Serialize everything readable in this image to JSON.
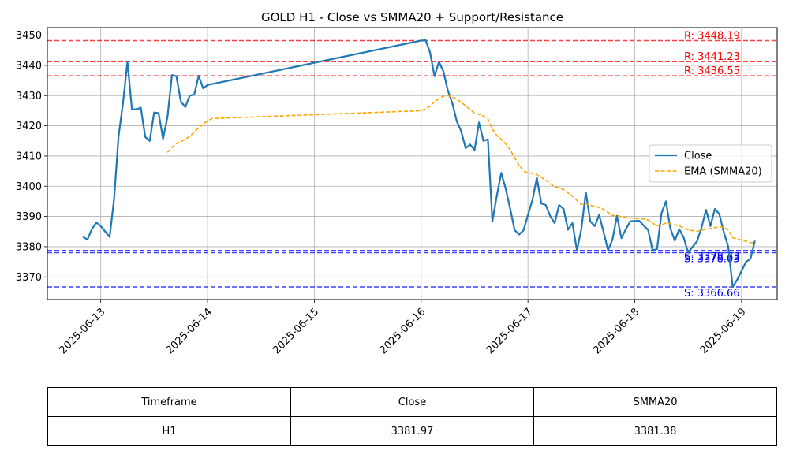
{
  "chart_data": {
    "type": "line",
    "title": "GOLD H1 - Close vs SMMA20 + Support/Resistance",
    "xlabel": "",
    "ylabel": "",
    "xlim": [
      "2025-06-12 12:00",
      "2025-06-19 08:00"
    ],
    "ylim": [
      3362.5,
      3452.5
    ],
    "yticks": [
      3370,
      3380,
      3390,
      3400,
      3410,
      3420,
      3430,
      3440,
      3450
    ],
    "xticks": [
      "2025-06-13",
      "2025-06-14",
      "2025-06-15",
      "2025-06-16",
      "2025-06-17",
      "2025-06-18",
      "2025-06-19"
    ],
    "grid": true,
    "legend": "center-right",
    "series": [
      {
        "name": "Close",
        "color": "#1f77b4",
        "style": "solid",
        "points": [
          [
            "2025-06-12 20:00",
            3383.3
          ],
          [
            "2025-06-12 21:00",
            3382.3
          ],
          [
            "2025-06-12 22:00",
            3385.8
          ],
          [
            "2025-06-12 23:00",
            3388.0
          ],
          [
            "2025-06-13 00:00",
            3386.8
          ],
          [
            "2025-06-13 01:00",
            3385.0
          ],
          [
            "2025-06-13 02:00",
            3383.2
          ],
          [
            "2025-06-13 03:00",
            3395.8
          ],
          [
            "2025-06-13 04:00",
            3416.5
          ],
          [
            "2025-06-13 05:00",
            3427.5
          ],
          [
            "2025-06-13 06:00",
            3441.2
          ],
          [
            "2025-06-13 07:00",
            3425.5
          ],
          [
            "2025-06-13 08:00",
            3425.4
          ],
          [
            "2025-06-13 09:00",
            3426.0
          ],
          [
            "2025-06-13 10:00",
            3416.3
          ],
          [
            "2025-06-13 11:00",
            3415.0
          ],
          [
            "2025-06-13 12:00",
            3424.4
          ],
          [
            "2025-06-13 13:00",
            3424.2
          ],
          [
            "2025-06-13 14:00",
            3415.7
          ],
          [
            "2025-06-13 15:00",
            3423.0
          ],
          [
            "2025-06-13 16:00",
            3436.8
          ],
          [
            "2025-06-13 17:00",
            3436.4
          ],
          [
            "2025-06-13 18:00",
            3428.0
          ],
          [
            "2025-06-13 19:00",
            3426.2
          ],
          [
            "2025-06-13 20:00",
            3430.0
          ],
          [
            "2025-06-13 21:00",
            3430.3
          ],
          [
            "2025-06-13 22:00",
            3436.6
          ],
          [
            "2025-06-13 23:00",
            3432.4
          ],
          [
            "2025-06-14 00:00",
            3433.5
          ],
          [
            "2025-06-16 00:00",
            3448.2
          ],
          [
            "2025-06-16 01:00",
            3448.3
          ],
          [
            "2025-06-16 02:00",
            3444.3
          ],
          [
            "2025-06-16 03:00",
            3436.4
          ],
          [
            "2025-06-16 04:00",
            3441.2
          ],
          [
            "2025-06-16 05:00",
            3438.0
          ],
          [
            "2025-06-16 06:00",
            3431.7
          ],
          [
            "2025-06-16 07:00",
            3427.5
          ],
          [
            "2025-06-16 08:00",
            3421.5
          ],
          [
            "2025-06-16 09:00",
            3418.2
          ],
          [
            "2025-06-16 10:00",
            3412.6
          ],
          [
            "2025-06-16 11:00",
            3413.8
          ],
          [
            "2025-06-16 12:00",
            3412.0
          ],
          [
            "2025-06-16 13:00",
            3421.1
          ],
          [
            "2025-06-16 14:00",
            3415.0
          ],
          [
            "2025-06-16 15:00",
            3415.5
          ],
          [
            "2025-06-16 16:00",
            3388.3
          ],
          [
            "2025-06-16 17:00",
            3396.8
          ],
          [
            "2025-06-16 18:00",
            3404.4
          ],
          [
            "2025-06-16 19:00",
            3399.2
          ],
          [
            "2025-06-16 20:00",
            3392.6
          ],
          [
            "2025-06-16 21:00",
            3385.5
          ],
          [
            "2025-06-16 22:00",
            3384.0
          ],
          [
            "2025-06-16 23:00",
            3385.4
          ],
          [
            "2025-06-17 00:00",
            3390.5
          ],
          [
            "2025-06-17 01:00",
            3395.4
          ],
          [
            "2025-06-17 02:00",
            3402.8
          ],
          [
            "2025-06-17 03:00",
            3394.3
          ],
          [
            "2025-06-17 04:00",
            3393.8
          ],
          [
            "2025-06-17 05:00",
            3390.1
          ],
          [
            "2025-06-17 06:00",
            3387.8
          ],
          [
            "2025-06-17 07:00",
            3393.8
          ],
          [
            "2025-06-17 08:00",
            3392.5
          ],
          [
            "2025-06-17 09:00",
            3385.6
          ],
          [
            "2025-06-17 10:00",
            3387.8
          ],
          [
            "2025-06-17 11:00",
            3378.8
          ],
          [
            "2025-06-17 12:00",
            3385.8
          ],
          [
            "2025-06-17 13:00",
            3398.0
          ],
          [
            "2025-06-17 14:00",
            3388.4
          ],
          [
            "2025-06-17 15:00",
            3386.8
          ],
          [
            "2025-06-17 16:00",
            3390.5
          ],
          [
            "2025-06-17 17:00",
            3384.8
          ],
          [
            "2025-06-17 18:00",
            3378.8
          ],
          [
            "2025-06-17 19:00",
            3382.4
          ],
          [
            "2025-06-17 20:00",
            3390.2
          ],
          [
            "2025-06-17 21:00",
            3382.8
          ],
          [
            "2025-06-17 22:00",
            3385.8
          ],
          [
            "2025-06-17 23:00",
            3388.4
          ],
          [
            "2025-06-18 00:00",
            3388.5
          ],
          [
            "2025-06-18 01:00",
            3388.6
          ],
          [
            "2025-06-18 02:00",
            3387.0
          ],
          [
            "2025-06-18 03:00",
            3385.5
          ],
          [
            "2025-06-18 04:00",
            3378.8
          ],
          [
            "2025-06-18 05:00",
            3379.2
          ],
          [
            "2025-06-18 06:00",
            3391.0
          ],
          [
            "2025-06-18 07:00",
            3395.0
          ],
          [
            "2025-06-18 08:00",
            3386.0
          ],
          [
            "2025-06-18 09:00",
            3382.0
          ],
          [
            "2025-06-18 10:00",
            3385.8
          ],
          [
            "2025-06-18 11:00",
            3383.0
          ],
          [
            "2025-06-18 12:00",
            3378.0
          ],
          [
            "2025-06-18 13:00",
            3380.0
          ],
          [
            "2025-06-18 14:00",
            3381.8
          ],
          [
            "2025-06-18 15:00",
            3386.3
          ],
          [
            "2025-06-18 16:00",
            3392.2
          ],
          [
            "2025-06-18 17:00",
            3386.8
          ],
          [
            "2025-06-18 18:00",
            3392.5
          ],
          [
            "2025-06-18 19:00",
            3390.8
          ],
          [
            "2025-06-18 20:00",
            3384.8
          ],
          [
            "2025-06-18 21:00",
            3380.0
          ],
          [
            "2025-06-18 22:00",
            3366.7
          ],
          [
            "2025-06-18 23:00",
            3369.0
          ],
          [
            "2025-06-19 00:00",
            3372.0
          ],
          [
            "2025-06-19 01:00",
            3375.0
          ],
          [
            "2025-06-19 02:00",
            3376.0
          ],
          [
            "2025-06-19 03:00",
            3381.97
          ]
        ]
      },
      {
        "name": "EMA (SMMA20)",
        "color": "#ffa500",
        "style": "dashed",
        "points": [
          [
            "2025-06-13 15:00",
            3411.2
          ],
          [
            "2025-06-13 16:00",
            3412.9
          ],
          [
            "2025-06-13 17:00",
            3414.1
          ],
          [
            "2025-06-13 18:00",
            3414.8
          ],
          [
            "2025-06-13 19:00",
            3415.5
          ],
          [
            "2025-06-13 20:00",
            3416.6
          ],
          [
            "2025-06-13 21:00",
            3417.8
          ],
          [
            "2025-06-13 22:00",
            3419.4
          ],
          [
            "2025-06-13 23:00",
            3420.5
          ],
          [
            "2025-06-14 00:00",
            3421.6
          ],
          [
            "2025-06-14 01:00",
            3422.4
          ],
          [
            "2025-06-16 00:00",
            3425.0
          ],
          [
            "2025-06-16 01:00",
            3425.6
          ],
          [
            "2025-06-16 02:00",
            3426.5
          ],
          [
            "2025-06-16 03:00",
            3428.0
          ],
          [
            "2025-06-16 04:00",
            3429.0
          ],
          [
            "2025-06-16 05:00",
            3429.8
          ],
          [
            "2025-06-16 06:00",
            3430.0
          ],
          [
            "2025-06-16 07:00",
            3429.5
          ],
          [
            "2025-06-16 08:00",
            3428.8
          ],
          [
            "2025-06-16 09:00",
            3427.8
          ],
          [
            "2025-06-16 10:00",
            3426.6
          ],
          [
            "2025-06-16 11:00",
            3425.4
          ],
          [
            "2025-06-16 12:00",
            3424.2
          ],
          [
            "2025-06-16 13:00",
            3423.8
          ],
          [
            "2025-06-16 14:00",
            3423.2
          ],
          [
            "2025-06-16 15:00",
            3422.3
          ],
          [
            "2025-06-16 16:00",
            3418.9
          ],
          [
            "2025-06-16 17:00",
            3416.8
          ],
          [
            "2025-06-16 18:00",
            3415.6
          ],
          [
            "2025-06-16 19:00",
            3414.0
          ],
          [
            "2025-06-16 20:00",
            3412.0
          ],
          [
            "2025-06-16 21:00",
            3409.5
          ],
          [
            "2025-06-16 22:00",
            3407.0
          ],
          [
            "2025-06-16 23:00",
            3405.0
          ],
          [
            "2025-06-17 00:00",
            3404.5
          ],
          [
            "2025-06-17 01:00",
            3404.2
          ],
          [
            "2025-06-17 02:00",
            3403.8
          ],
          [
            "2025-06-17 03:00",
            3403.0
          ],
          [
            "2025-06-17 04:00",
            3402.0
          ],
          [
            "2025-06-17 05:00",
            3400.9
          ],
          [
            "2025-06-17 06:00",
            3399.8
          ],
          [
            "2025-06-17 07:00",
            3399.5
          ],
          [
            "2025-06-17 08:00",
            3398.9
          ],
          [
            "2025-06-17 09:00",
            3397.8
          ],
          [
            "2025-06-17 10:00",
            3396.8
          ],
          [
            "2025-06-17 11:00",
            3395.3
          ],
          [
            "2025-06-17 12:00",
            3394.0
          ],
          [
            "2025-06-17 13:00",
            3394.2
          ],
          [
            "2025-06-17 14:00",
            3393.7
          ],
          [
            "2025-06-17 15:00",
            3393.3
          ],
          [
            "2025-06-17 16:00",
            3393.0
          ],
          [
            "2025-06-17 17:00",
            3392.3
          ],
          [
            "2025-06-17 18:00",
            3391.3
          ],
          [
            "2025-06-17 19:00",
            3390.3
          ],
          [
            "2025-06-17 20:00",
            3390.3
          ],
          [
            "2025-06-17 21:00",
            3389.9
          ],
          [
            "2025-06-17 22:00",
            3389.7
          ],
          [
            "2025-06-17 23:00",
            3389.5
          ],
          [
            "2025-06-18 00:00",
            3389.4
          ],
          [
            "2025-06-18 01:00",
            3389.3
          ],
          [
            "2025-06-18 02:00",
            3389.2
          ],
          [
            "2025-06-18 03:00",
            3388.8
          ],
          [
            "2025-06-18 04:00",
            3387.8
          ],
          [
            "2025-06-18 05:00",
            3386.9
          ],
          [
            "2025-06-18 06:00",
            3387.1
          ],
          [
            "2025-06-18 07:00",
            3387.9
          ],
          [
            "2025-06-18 08:00",
            3387.6
          ],
          [
            "2025-06-18 09:00",
            3387.2
          ],
          [
            "2025-06-18 10:00",
            3386.9
          ],
          [
            "2025-06-18 11:00",
            3386.2
          ],
          [
            "2025-06-18 12:00",
            3385.6
          ],
          [
            "2025-06-18 13:00",
            3385.3
          ],
          [
            "2025-06-18 14:00",
            3385.1
          ],
          [
            "2025-06-18 15:00",
            3385.4
          ],
          [
            "2025-06-18 16:00",
            3385.8
          ],
          [
            "2025-06-18 17:00",
            3386.0
          ],
          [
            "2025-06-18 18:00",
            3386.3
          ],
          [
            "2025-06-18 19:00",
            3386.6
          ],
          [
            "2025-06-18 20:00",
            3386.4
          ],
          [
            "2025-06-18 21:00",
            3385.5
          ],
          [
            "2025-06-18 22:00",
            3383.0
          ],
          [
            "2025-06-18 23:00",
            3382.5
          ],
          [
            "2025-06-19 00:00",
            3382.2
          ],
          [
            "2025-06-19 01:00",
            3381.8
          ],
          [
            "2025-06-19 02:00",
            3381.3
          ],
          [
            "2025-06-19 03:00",
            3381.38
          ]
        ]
      }
    ],
    "hlines": [
      {
        "kind": "resistance",
        "value": 3448.19,
        "label": "R: 3448.19",
        "color": "#ff0000"
      },
      {
        "kind": "resistance",
        "value": 3441.23,
        "label": "R: 3441.23",
        "color": "#ff0000"
      },
      {
        "kind": "resistance",
        "value": 3436.55,
        "label": "R: 3436.55",
        "color": "#ff0000"
      },
      {
        "kind": "support",
        "value": 3378.73,
        "label": "S: 3378.73",
        "color": "#0000ff"
      },
      {
        "kind": "support",
        "value": 3378.03,
        "label": "S: 3378.03",
        "color": "#0000ff"
      },
      {
        "kind": "support",
        "value": 3366.66,
        "label": "S: 3366.66",
        "color": "#0000ff"
      }
    ]
  },
  "table": {
    "headers": [
      "Timeframe",
      "Close",
      "SMMA20"
    ],
    "rows": [
      [
        "H1",
        "3381.97",
        "3381.38"
      ]
    ]
  }
}
